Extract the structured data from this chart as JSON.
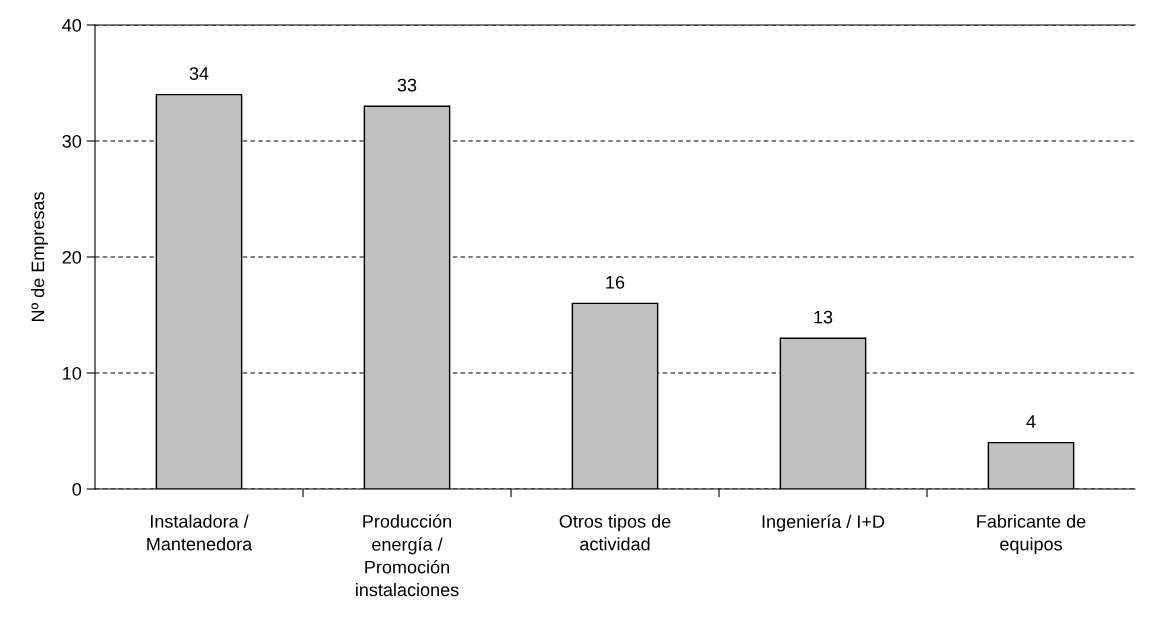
{
  "chart_data": {
    "type": "bar",
    "ylabel": "Nº de Empresas",
    "categories": [
      "Instaladora /\nMantenedora",
      "Producción\nenergía /\nPromoción\ninstalaciones",
      "Otros tipos de\nactividad",
      "Ingeniería / I+D",
      "Fabricante de\nequipos"
    ],
    "values": [
      34,
      33,
      16,
      13,
      4
    ],
    "color": "#c0c0c0",
    "ylim": [
      0,
      40
    ],
    "yticks": [
      0,
      10,
      20,
      30,
      40
    ],
    "grid": "y",
    "data_labels": true
  }
}
